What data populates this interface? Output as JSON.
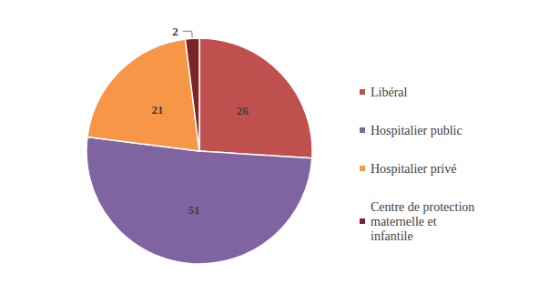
{
  "chart_data": {
    "type": "pie",
    "categories": [
      "Libéral",
      "Hospitalier public",
      "Hospitalier privé",
      "Centre de protection maternelle et infantile"
    ],
    "values": [
      26,
      51,
      21,
      2
    ],
    "colors": [
      "#c0504d",
      "#8064a2",
      "#f79646",
      "#7b2626"
    ],
    "data_labels": true,
    "legend": "right"
  }
}
